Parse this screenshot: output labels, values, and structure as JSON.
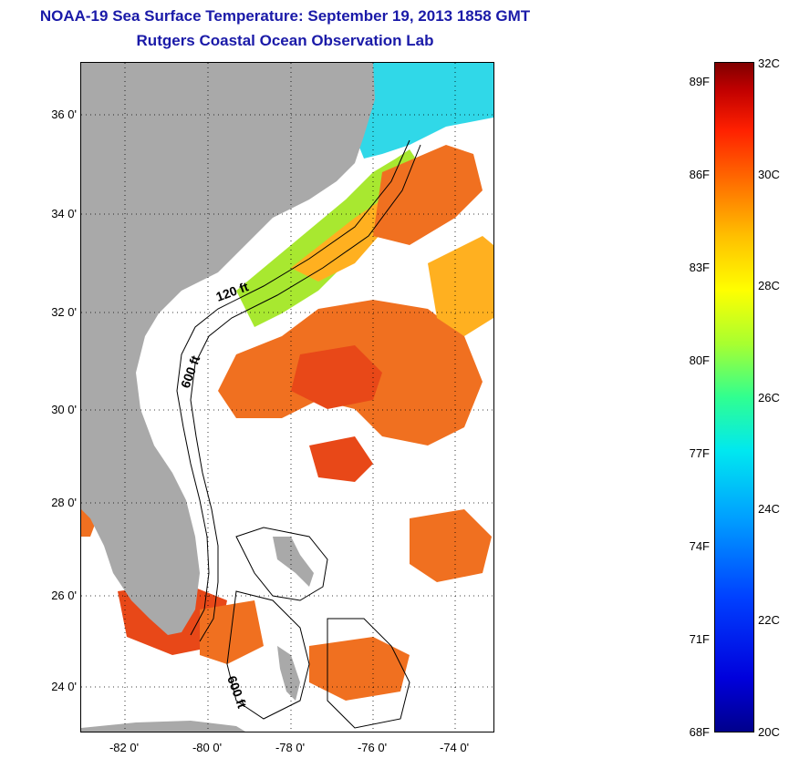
{
  "titles": {
    "line1": "NOAA-19 Sea Surface Temperature:  September 19, 2013 1858 GMT",
    "line2": "Rutgers Coastal Ocean Observation Lab"
  },
  "map": {
    "lat_labels": [
      "36 0'",
      "34 0'",
      "32 0'",
      "30 0'",
      "28 0'",
      "26 0'",
      "24 0'"
    ],
    "lon_labels": [
      "-82 0'",
      "-80 0'",
      "-78 0'",
      "-76 0'",
      "-74 0'"
    ],
    "isobath_labels": [
      "120 ft",
      "600 ft",
      "600 ft"
    ],
    "colors": {
      "land": "#a9a9a9",
      "cloud": "#ffffff",
      "warm": "#f07020",
      "hot": "#e84818",
      "mid": "#ffb020",
      "cool": "#a8e830",
      "cold": "#30d8e8"
    }
  },
  "colorbar": {
    "f_labels": [
      "89F",
      "86F",
      "83F",
      "80F",
      "77F",
      "74F",
      "71F",
      "68F"
    ],
    "c_labels": [
      "32C",
      "30C",
      "28C",
      "26C",
      "24C",
      "22C",
      "20C"
    ],
    "min_c": 20,
    "max_c": 32,
    "colors": [
      "#00008c",
      "#0040ff",
      "#00e8f0",
      "#30ff90",
      "#ffff00",
      "#ff7000",
      "#800000"
    ]
  }
}
